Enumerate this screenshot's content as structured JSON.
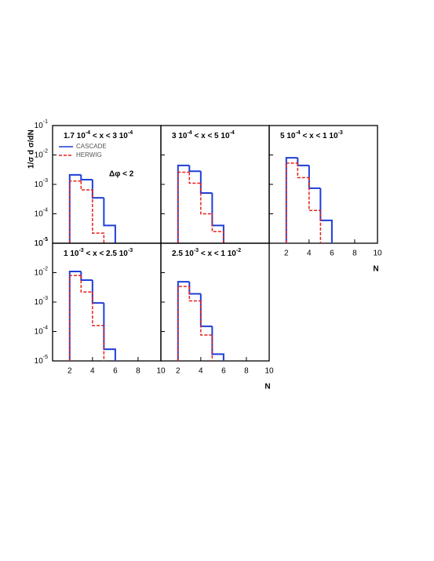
{
  "chart_data": [
    {
      "type": "histogram",
      "title_parts": [
        "1.7 10",
        "-4",
        " < x < 3 10",
        "-4"
      ],
      "ylabel": "1/σ d σ/dN",
      "annotation": "Δφ < 2",
      "bins": [
        2,
        3,
        4,
        5,
        6
      ],
      "xlim": [
        0.5,
        10
      ],
      "ylim": [
        1e-05,
        0.1
      ],
      "log_y": true,
      "yticks": [
        {
          "value": 0.1,
          "label": "10",
          "exponent": "-1"
        },
        {
          "value": 0.01,
          "label": "10",
          "exponent": "-2"
        },
        {
          "value": 0.001,
          "label": "10",
          "exponent": "-3"
        },
        {
          "value": 0.0001,
          "label": "10",
          "exponent": "-4"
        },
        {
          "value": 1e-05,
          "label": "10",
          "exponent": "-5"
        }
      ],
      "legend": "upper left",
      "series": [
        {
          "name": "CASCADE",
          "color": "#1f3fd6",
          "dash": false,
          "values": [
            0.0021,
            0.00145,
            0.00035,
            4e-05
          ]
        },
        {
          "name": "HERWIG",
          "color": "#e8201a",
          "dash": true,
          "values": [
            0.0013,
            0.00065,
            2.2e-05,
            null
          ]
        }
      ]
    },
    {
      "type": "histogram",
      "title_parts": [
        "3 10",
        "-4",
        " < x < 5 10",
        "-4"
      ],
      "bins": [
        2,
        3,
        4,
        5,
        6
      ],
      "xlim": [
        0.5,
        10
      ],
      "ylim": [
        1e-05,
        0.1
      ],
      "log_y": true,
      "series": [
        {
          "name": "CASCADE",
          "color": "#1f3fd6",
          "dash": false,
          "values": [
            0.0044,
            0.0028,
            0.00051,
            4e-05
          ]
        },
        {
          "name": "HERWIG",
          "color": "#e8201a",
          "dash": true,
          "values": [
            0.0026,
            0.0011,
            0.0001,
            2.5e-05
          ]
        }
      ]
    },
    {
      "type": "histogram",
      "title_parts": [
        "5 10",
        "-4",
        " < x < 1 10",
        "-3"
      ],
      "xlabel": "N",
      "bins": [
        2,
        3,
        4,
        5,
        6
      ],
      "xlim": [
        0.5,
        10
      ],
      "ylim": [
        1e-05,
        0.1
      ],
      "log_y": true,
      "xticks": [
        2,
        4,
        6,
        8,
        10
      ],
      "series": [
        {
          "name": "CASCADE",
          "color": "#1f3fd6",
          "dash": false,
          "values": [
            0.008,
            0.0044,
            0.00074,
            6e-05
          ]
        },
        {
          "name": "HERWIG",
          "color": "#e8201a",
          "dash": true,
          "values": [
            0.0053,
            0.0017,
            0.00013,
            null
          ]
        }
      ]
    },
    {
      "type": "histogram",
      "title_parts": [
        "1 10",
        "-3",
        " < x < 2.5 10",
        "-3"
      ],
      "bins": [
        2,
        3,
        4,
        5,
        6
      ],
      "xlim": [
        0.5,
        10
      ],
      "ylim": [
        1e-05,
        0.1
      ],
      "log_y": true,
      "yticks": [
        {
          "value": 0.1,
          "label": "10",
          "exponent": "-1"
        },
        {
          "value": 0.01,
          "label": "10",
          "exponent": "-2"
        },
        {
          "value": 0.001,
          "label": "10",
          "exponent": "-3"
        },
        {
          "value": 0.0001,
          "label": "10",
          "exponent": "-4"
        },
        {
          "value": 1e-05,
          "label": "10",
          "exponent": "-5"
        }
      ],
      "xticks": [
        2,
        4,
        6,
        8,
        10
      ],
      "series": [
        {
          "name": "CASCADE",
          "color": "#1f3fd6",
          "dash": false,
          "values": [
            0.011,
            0.0056,
            0.00093,
            2.5e-05
          ]
        },
        {
          "name": "HERWIG",
          "color": "#e8201a",
          "dash": true,
          "values": [
            0.008,
            0.0022,
            0.00016,
            null
          ]
        }
      ]
    },
    {
      "type": "histogram",
      "title_parts": [
        "2.5 10",
        "-3",
        " < x < 1 10",
        "-2"
      ],
      "xlabel": "N",
      "bins": [
        2,
        3,
        4,
        5,
        6
      ],
      "xlim": [
        0.5,
        10
      ],
      "ylim": [
        1e-05,
        0.1
      ],
      "log_y": true,
      "xticks": [
        2,
        4,
        6,
        8,
        10
      ],
      "series": [
        {
          "name": "CASCADE",
          "color": "#1f3fd6",
          "dash": false,
          "values": [
            0.0049,
            0.0019,
            0.00015,
            1.7e-05
          ]
        },
        {
          "name": "HERWIG",
          "color": "#e8201a",
          "dash": true,
          "values": [
            0.0034,
            0.0011,
            7.6e-05,
            null
          ]
        }
      ]
    }
  ]
}
